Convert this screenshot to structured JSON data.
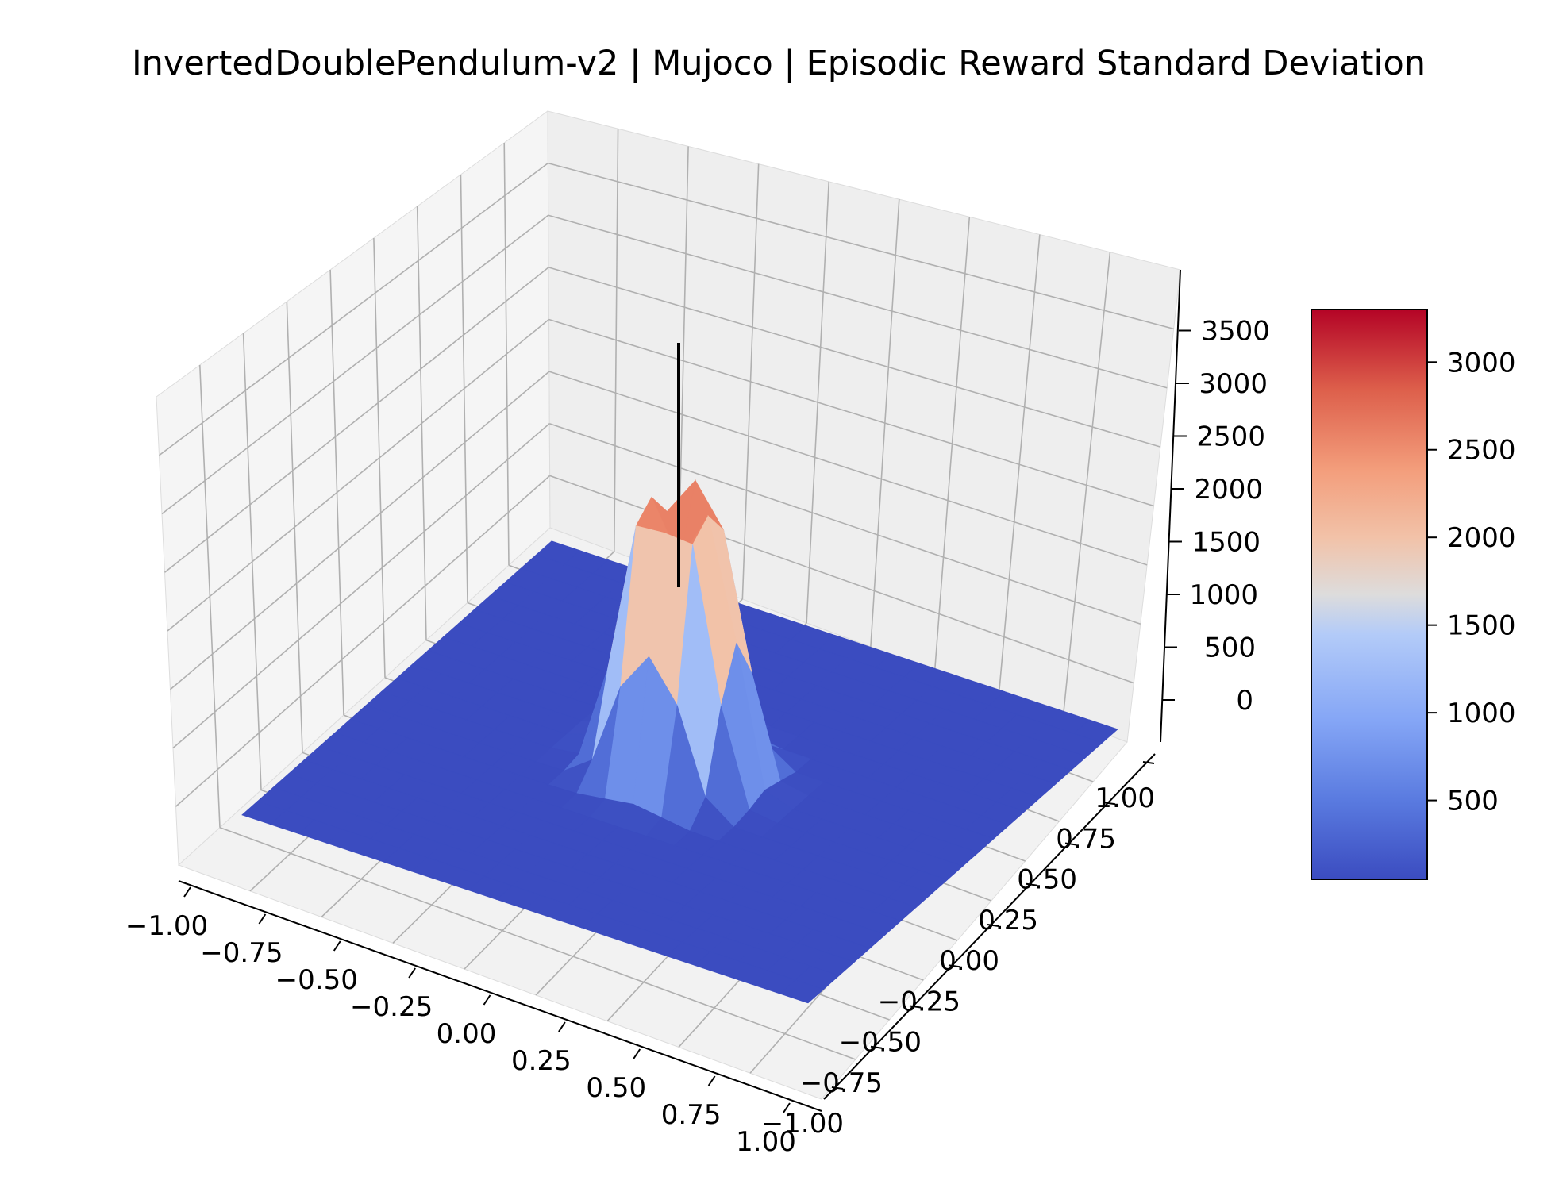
{
  "chart_data": {
    "type": "surface3d",
    "title": "InvertedDoublePendulum-v2 | Mujoco | Episodic Reward Standard Deviation",
    "xlabel": "",
    "ylabel": "",
    "zlabel": "",
    "x_ticks": [
      "−1.00",
      "−0.75",
      "−0.50",
      "−0.25",
      "0.00",
      "0.25",
      "0.50",
      "0.75",
      "1.00"
    ],
    "y_ticks": [
      "−1.00",
      "−0.75",
      "−0.50",
      "−0.25",
      "0.00",
      "0.25",
      "0.50",
      "0.75",
      "1.00"
    ],
    "z_ticks": [
      "0",
      "500",
      "1000",
      "1500",
      "2000",
      "2500",
      "3000",
      "3500"
    ],
    "xlim": [
      -1,
      1
    ],
    "ylim": [
      -1,
      1
    ],
    "zlim": [
      -200,
      3900
    ],
    "colormap": "coolwarm",
    "colorbar": {
      "ticks": [
        "500",
        "1000",
        "1500",
        "2000",
        "2500",
        "3000"
      ],
      "range": [
        50,
        3300
      ]
    },
    "surface": {
      "description_of_shape": "flat near ~50 everywhere except a tall crater-like peak centered at (0,0)",
      "peak_center": [
        0.0,
        0.0
      ],
      "peak_max": 3300,
      "baseline": 50
    },
    "marker_line": {
      "x": 0.0,
      "y": 0.0,
      "z_from": 1200,
      "z_to": 3500,
      "color": "#000000"
    },
    "grid": true,
    "colors": {
      "pane": "#f2f2f2",
      "grid": "#b0b0b0",
      "cold": "#3b4cc0",
      "hot": "#b40426"
    }
  }
}
